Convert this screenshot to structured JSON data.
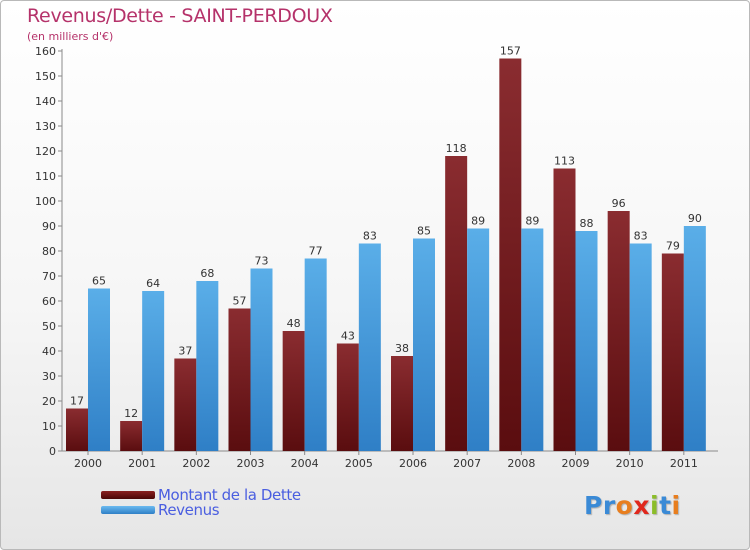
{
  "title": "Revenus/Dette - SAINT-PERDOUX",
  "subtitle": "(en milliers d'€)",
  "colors": {
    "dette": "#7a1f24",
    "revenus": "#4a9fe0",
    "title": "#b5326a",
    "legend_text": "#4a5ee0"
  },
  "legend": [
    {
      "label": "Montant de la Dette",
      "color": "#6b1111"
    },
    {
      "label": "Revenus",
      "color": "#4a9fe0"
    }
  ],
  "logo": {
    "text": "Proxiti",
    "letter_colors": [
      "#3a8ad6",
      "#3a8ad6",
      "#e87e1e",
      "#e0281d",
      "#8bbd2a",
      "#3a8ad6",
      "#e87e1e"
    ]
  },
  "chart_data": {
    "type": "bar",
    "categories": [
      "2000",
      "2001",
      "2002",
      "2003",
      "2004",
      "2005",
      "2006",
      "2007",
      "2008",
      "2009",
      "2010",
      "2011"
    ],
    "series": [
      {
        "name": "Montant de la Dette",
        "values": [
          17,
          12,
          37,
          57,
          48,
          43,
          38,
          118,
          157,
          113,
          96,
          79
        ]
      },
      {
        "name": "Revenus",
        "values": [
          65,
          64,
          68,
          73,
          77,
          83,
          85,
          89,
          89,
          88,
          83,
          90
        ]
      }
    ],
    "ylim": [
      0,
      160
    ],
    "yticks": [
      0,
      10,
      20,
      30,
      40,
      50,
      60,
      70,
      80,
      90,
      100,
      110,
      120,
      130,
      140,
      150,
      160
    ],
    "grid": false,
    "legend_position": "bottom-left"
  }
}
